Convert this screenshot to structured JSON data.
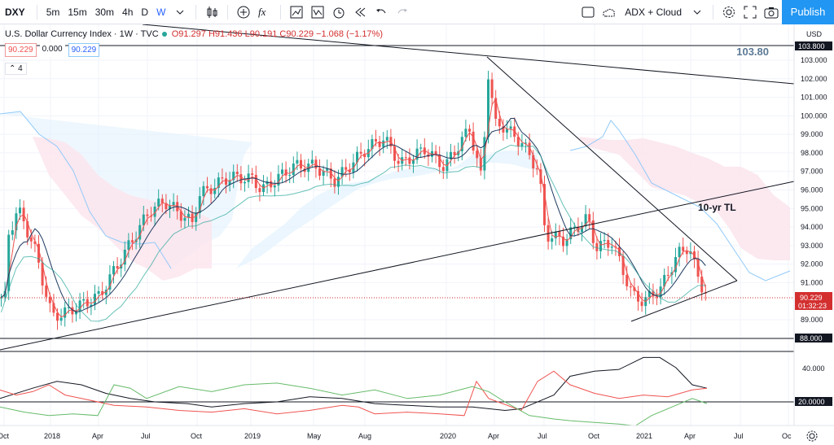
{
  "toolbar": {
    "symbol": "DXY",
    "intervals": [
      "5m",
      "15m",
      "30m",
      "4h",
      "D",
      "W"
    ],
    "active_interval": "W",
    "layout_name": "ADX + Cloud",
    "publish_label": "Publish"
  },
  "legend": {
    "title": "U.S. Dollar Currency Index · 1W · TVC",
    "ohlc": "O91.297 H91.436 L90.191 C90.229 −1.068 (−1.17%)",
    "ind1_a": "90.229",
    "ind1_b": "0.000",
    "ind1_c": "90.229",
    "collapsed_count": "4"
  },
  "annotations": {
    "price_note": "103.80",
    "trendline_label": "10-yr TL"
  },
  "price_axis": {
    "currency": "USD",
    "ticks": [
      "103.000",
      "102.000",
      "101.000",
      "100.000",
      "99.000",
      "98.000",
      "97.000",
      "96.000",
      "95.000",
      "94.000",
      "93.000",
      "92.000",
      "91.000",
      "89.000"
    ],
    "badge_top": "103.800",
    "badge_bottom": "88.000",
    "current_price": "90.229",
    "countdown": "01:32:23",
    "ind_ticks": [
      "40.000"
    ],
    "ind_badge": "20.0000"
  },
  "time_axis": {
    "labels": [
      "Oct",
      "2018",
      "Apr",
      "Jul",
      "Oct",
      "2019",
      "May",
      "Aug",
      "2020",
      "Apr",
      "Jul",
      "Oct",
      "2021",
      "Apr",
      "Jul",
      "Oc"
    ]
  },
  "colors": {
    "up": "#26a69a",
    "down": "#ef5350",
    "last_price": "#d32f2f",
    "cloud_bull": "#e3f2fd",
    "cloud_bear": "#fce4ec",
    "accent": "#2962ff"
  },
  "chart_data": {
    "type": "line",
    "title": "U.S. Dollar Currency Index · 1W · TVC",
    "ylim": [
      88.5,
      103.8
    ],
    "x": [
      "Oct",
      "2018",
      "Apr",
      "Jul",
      "Oct",
      "2019",
      "May",
      "Aug",
      "2020",
      "Apr",
      "Jul",
      "Oct",
      "2021",
      "Apr"
    ],
    "series": [
      {
        "name": "",
        "values": [
          93.0,
          89.2,
          90.3,
          94.8,
          95.7,
          96.6,
          97.3,
          98.2,
          97.5,
          99.5,
          93.6,
          92.9,
          90.0,
          92.3
        ]
      }
    ]
  }
}
